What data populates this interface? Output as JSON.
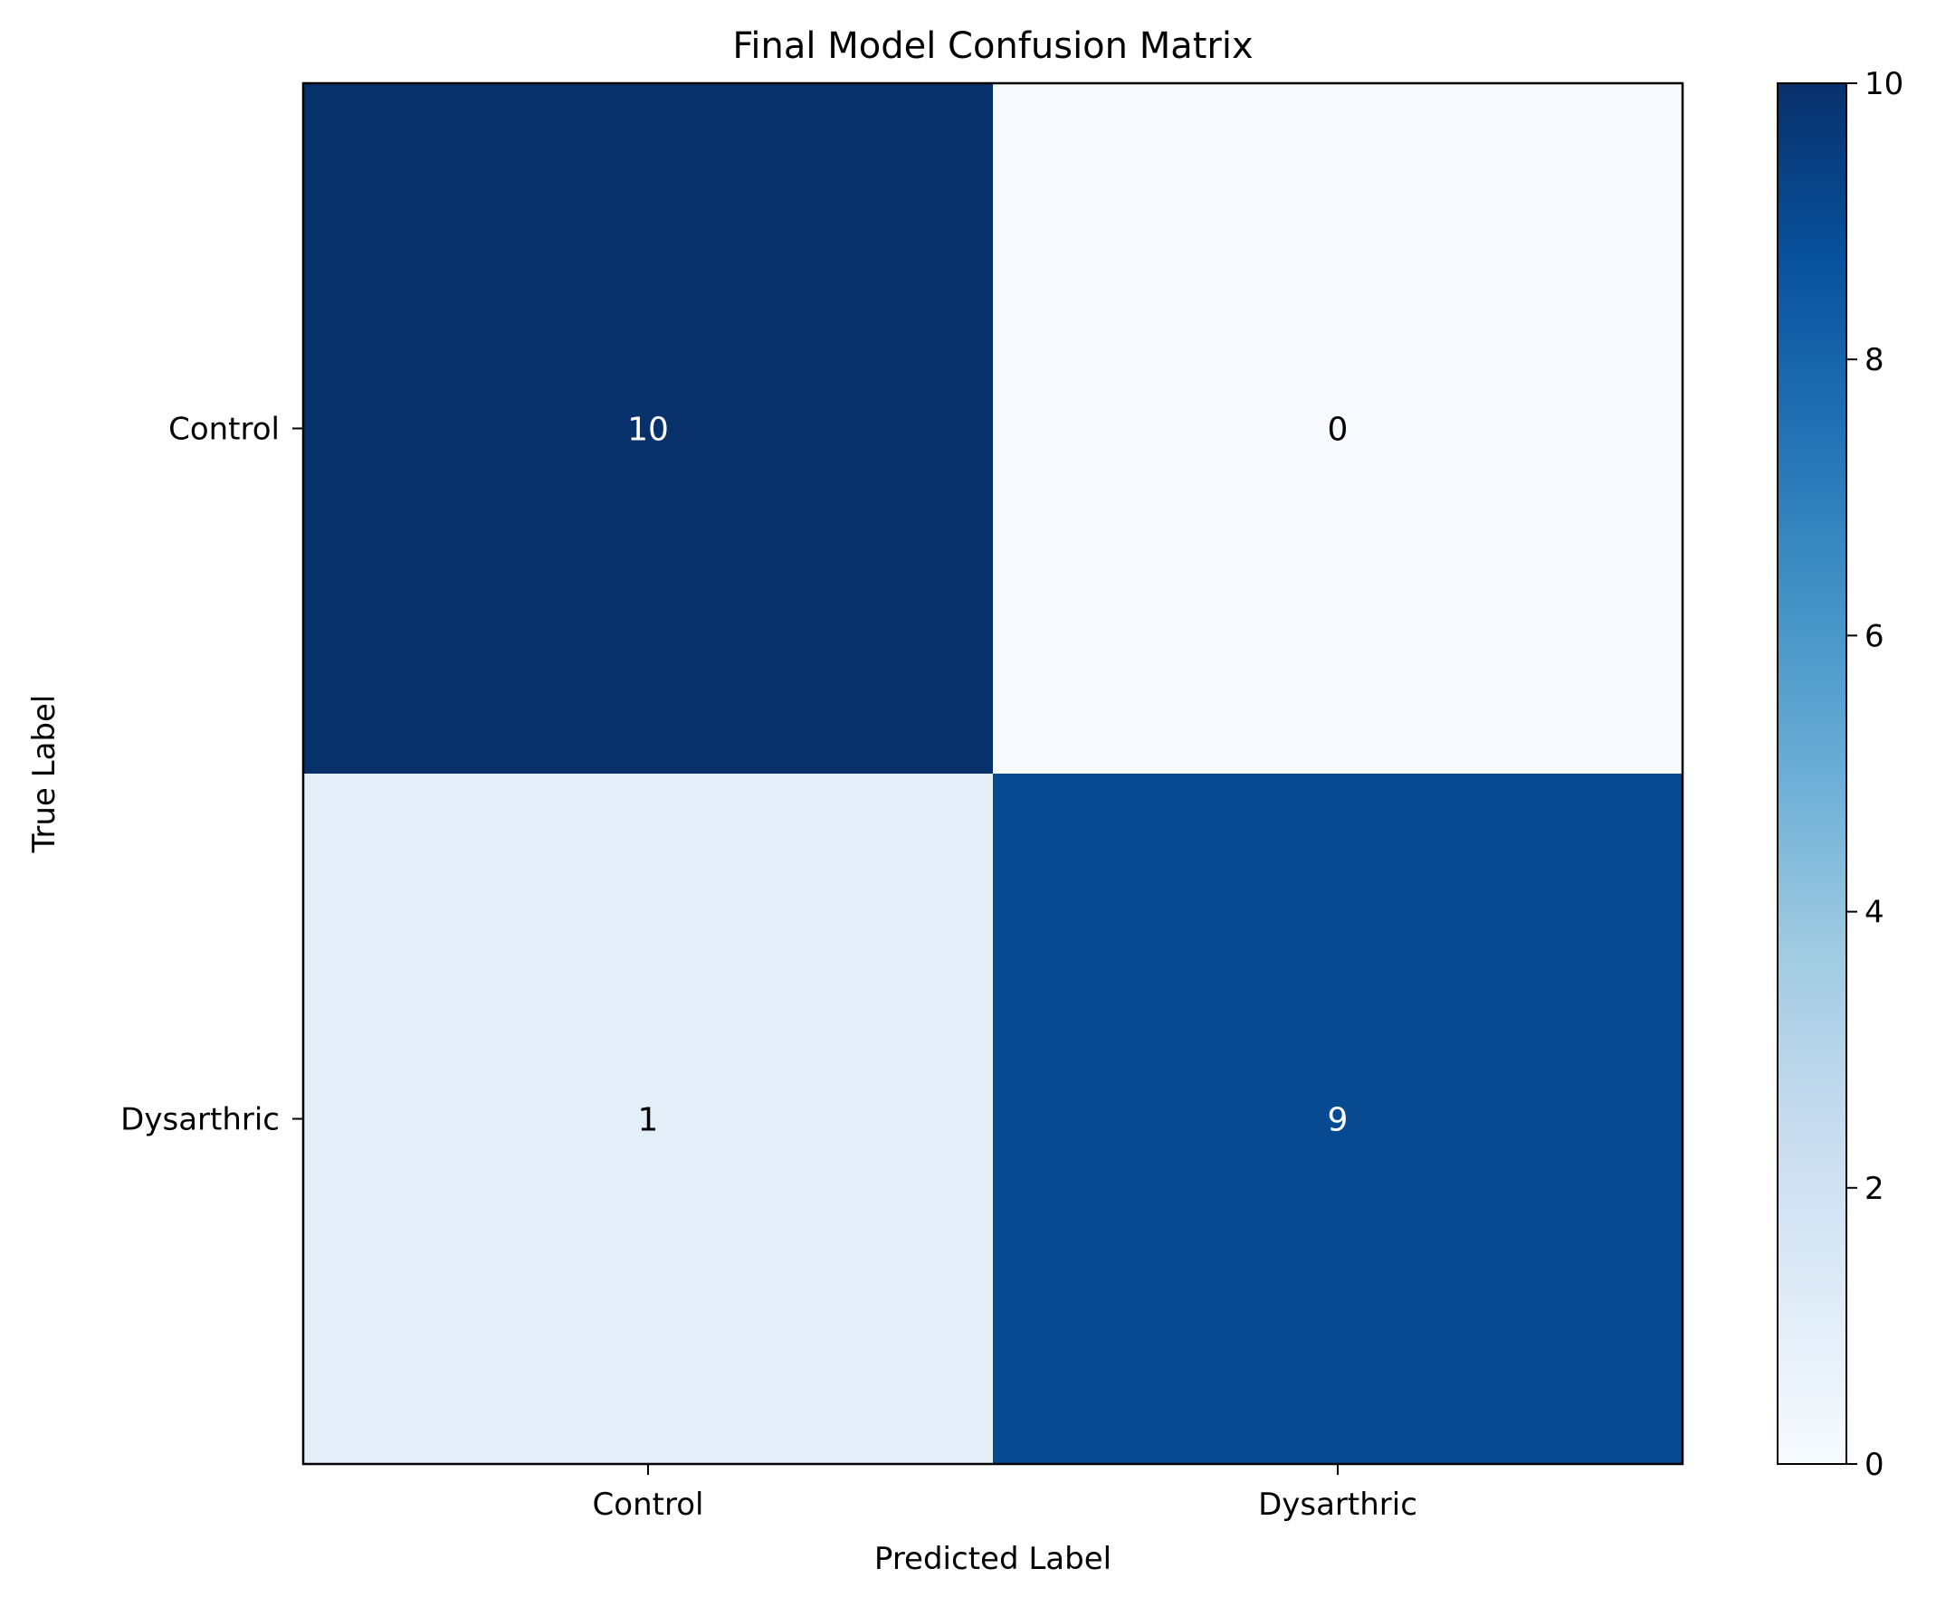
{
  "chart_data": {
    "type": "heatmap",
    "title": "Final Model Confusion Matrix",
    "xlabel": "Predicted Label",
    "ylabel": "True Label",
    "x_categories": [
      "Control",
      "Dysarthric"
    ],
    "y_categories": [
      "Control",
      "Dysarthric"
    ],
    "values": [
      [
        10,
        0
      ],
      [
        1,
        9
      ]
    ],
    "colormap": "Blues",
    "colorbar": {
      "range": [
        0,
        10
      ],
      "ticks": [
        "0",
        "2",
        "4",
        "6",
        "8",
        "10"
      ]
    },
    "grid": false
  }
}
